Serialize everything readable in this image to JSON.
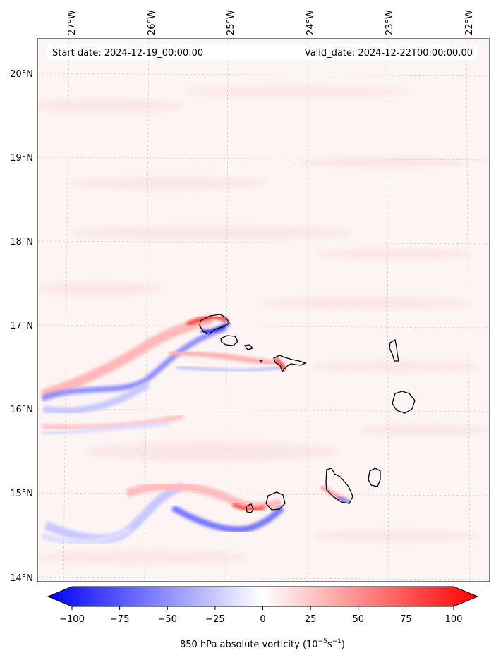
{
  "map": {
    "start_date_text": "Start date: 2024-12-19_00:00:00",
    "valid_date_text": "Valid_date: 2024-12-22T00:00:00.00",
    "lon_ticks": [
      "27°W",
      "26°W",
      "25°W",
      "24°W",
      "23°W",
      "22°W"
    ],
    "lat_ticks": [
      "20°N",
      "19°N",
      "18°N",
      "17°N",
      "16°N",
      "15°N",
      "14°N"
    ],
    "background_color": "#fdf3f3",
    "positive_color": "#ff0000",
    "negative_color": "#0000ff"
  },
  "colorbar": {
    "ticks": [
      "−100",
      "−75",
      "−50",
      "−25",
      "0",
      "25",
      "50",
      "75",
      "100"
    ],
    "tick_values": [
      -100,
      -75,
      -50,
      -25,
      0,
      25,
      50,
      75,
      100
    ],
    "min": -100,
    "max": 100,
    "label_main": "850 hPa absolute vorticity (10",
    "label_exp1": "−5",
    "label_mid": "s",
    "label_exp2": "−1",
    "label_close": ")"
  }
}
